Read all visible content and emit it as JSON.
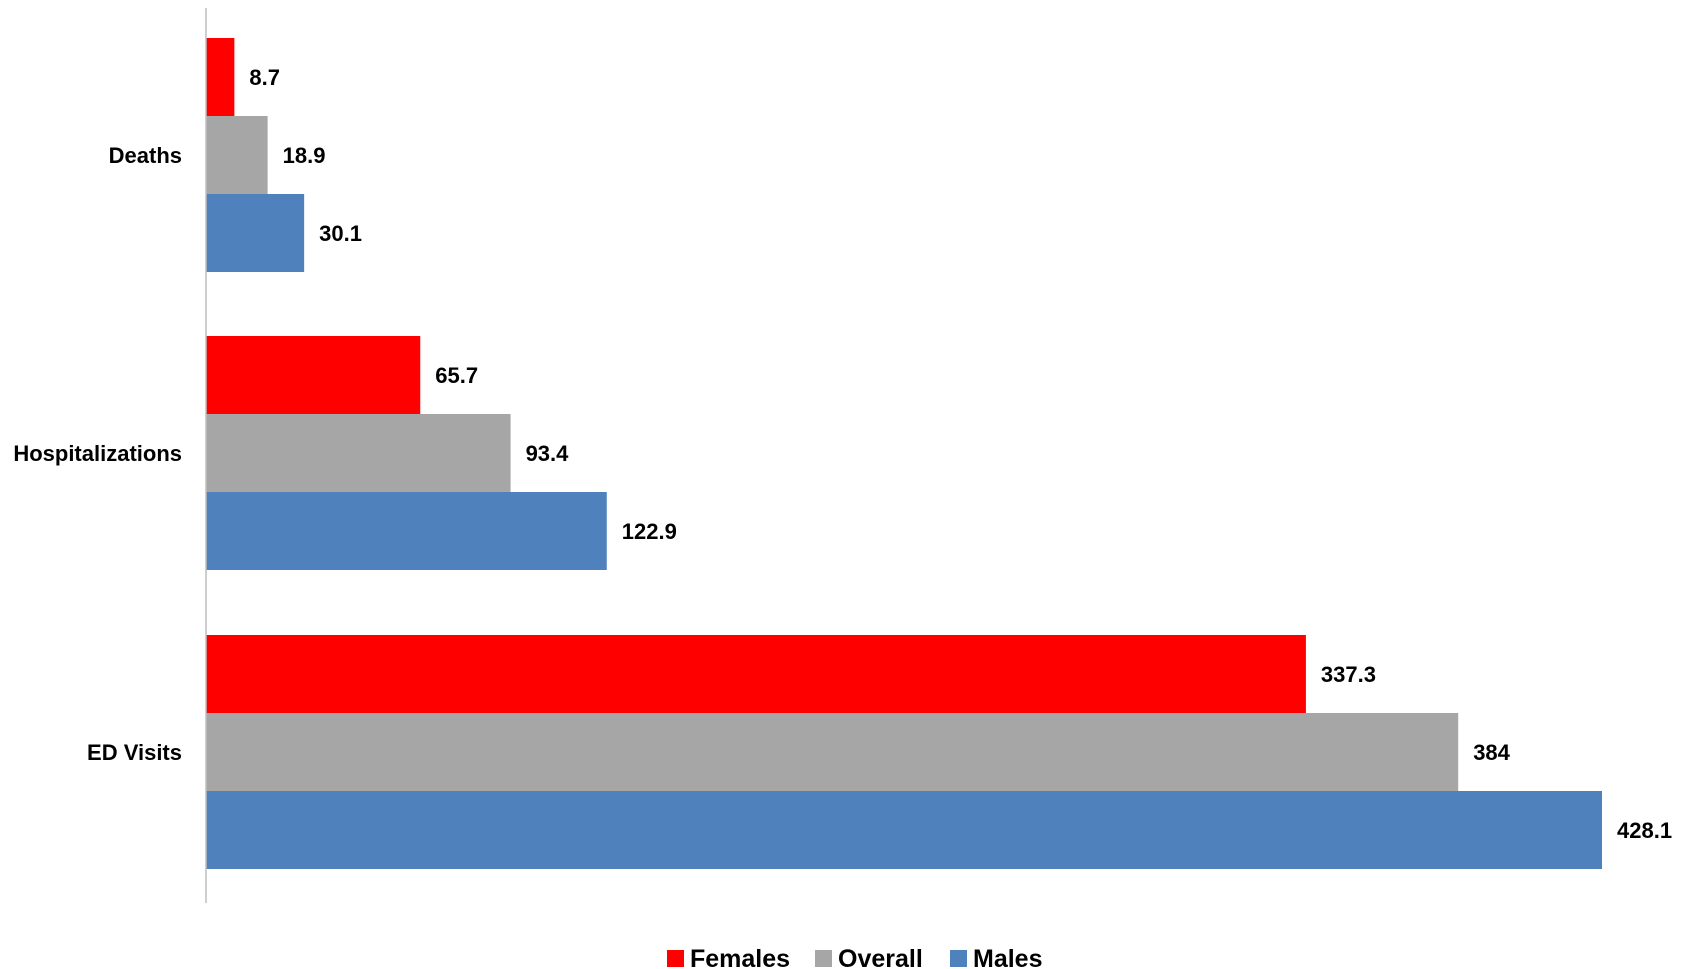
{
  "chart_data": {
    "type": "bar",
    "orientation": "horizontal",
    "categories": [
      "Deaths",
      "Hospitalizations",
      "ED Visits"
    ],
    "series": [
      {
        "name": "Females",
        "color": "#ff0000",
        "values": [
          8.7,
          65.7,
          337.3
        ]
      },
      {
        "name": "Overall",
        "color": "#a6a6a6",
        "values": [
          18.9,
          93.4,
          384
        ]
      },
      {
        "name": "Males",
        "color": "#4f81bd",
        "values": [
          30.1,
          122.9,
          428.1
        ]
      }
    ],
    "value_labels": [
      [
        "8.7",
        "65.7",
        "337.3"
      ],
      [
        "18.9",
        "93.4",
        "384"
      ],
      [
        "30.1",
        "122.9",
        "428.1"
      ]
    ],
    "xlim": [
      0,
      428.1
    ],
    "grid": false,
    "legend_position": "bottom",
    "title": "",
    "xlabel": "",
    "ylabel": ""
  }
}
